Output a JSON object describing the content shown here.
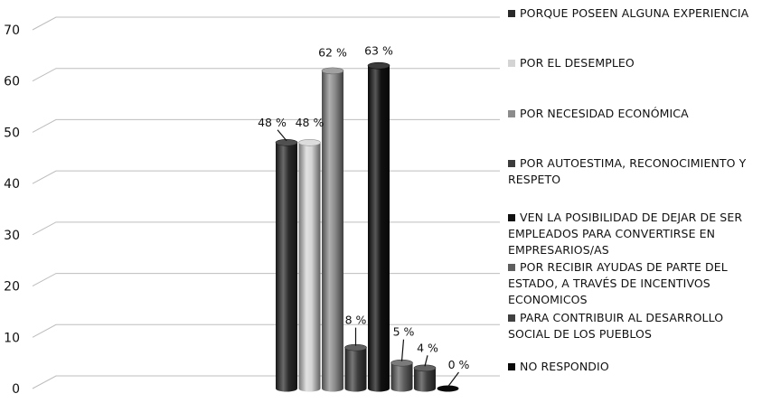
{
  "chart_data": {
    "type": "bar",
    "title": "",
    "xlabel": "",
    "ylabel": "",
    "ylim": [
      0,
      70
    ],
    "yticks": [
      0,
      10,
      20,
      30,
      40,
      50,
      60,
      70
    ],
    "grid": true,
    "legend_position": "right",
    "series": [
      {
        "name": "PORQUE POSEEN ALGUNA EXPERIENCIA",
        "value": 48,
        "label": "48 %",
        "color": "#2a2a2a"
      },
      {
        "name": "POR EL DESEMPLEO",
        "value": 48,
        "label": "48 %",
        "color": "#d4d4d4"
      },
      {
        "name": "POR NECESIDAD ECONÓMICA",
        "value": 62,
        "label": "62 %",
        "color": "#8c8c8c"
      },
      {
        "name": "POR AUTOESTIMA, RECONOCIMIENTO Y RESPETO",
        "value": 8,
        "label": "8 %",
        "color": "#3c3c3c"
      },
      {
        "name": "VEN LA POSIBILIDAD DE DEJAR DE SER EMPLEADOS PARA CONVERTIRSE EN EMPRESARIOS/AS",
        "value": 63,
        "label": "63  %",
        "color": "#111111"
      },
      {
        "name": "POR RECIBIR AYUDAS DE PARTE DEL ESTADO, A TRAVÉS DE INCENTIVOS ECONOMICOS",
        "value": 5,
        "label": "5 %",
        "color": "#5e5e5e"
      },
      {
        "name": "PARA CONTRIBUIR AL DESARROLLO SOCIAL DE LOS PUEBLOS",
        "value": 4,
        "label": "4 %",
        "color": "#404040"
      },
      {
        "name": "NO RESPONDIO",
        "value": 0,
        "label": "0 %",
        "color": "#0a0a0a"
      }
    ]
  }
}
